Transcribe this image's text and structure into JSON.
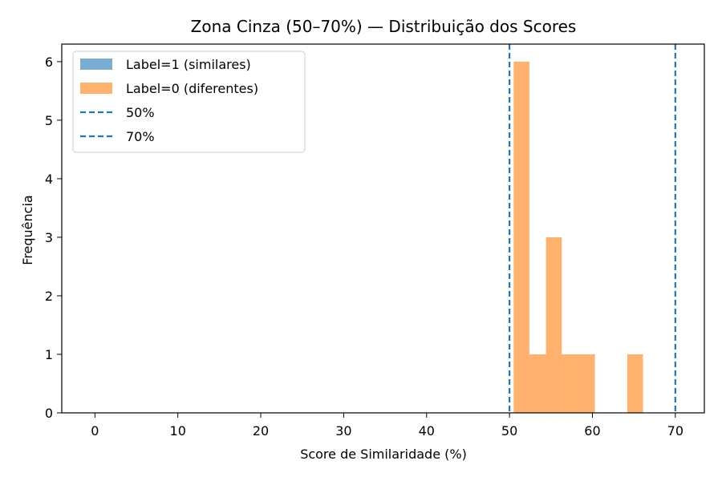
{
  "chart_data": {
    "type": "bar",
    "title": "Zona Cinza (50–70%) — Distribuição dos Scores",
    "xlabel": "Score de Similaridade (%)",
    "ylabel": "Frequência",
    "xlim": [
      -4,
      73.5
    ],
    "ylim": [
      0,
      6.3
    ],
    "xticks": [
      0,
      10,
      20,
      30,
      40,
      50,
      60,
      70
    ],
    "yticks": [
      0,
      1,
      2,
      3,
      4,
      5,
      6
    ],
    "legend_position": "upper-left",
    "series": [
      {
        "name": "Label=1 (similares)",
        "color": "#1f77b4",
        "bins": []
      },
      {
        "name": "Label=0 (diferentes)",
        "color": "#ff7f0e",
        "bins": [
          {
            "x0": 50.5,
            "x1": 52.4,
            "count": 6
          },
          {
            "x0": 52.4,
            "x1": 54.4,
            "count": 1
          },
          {
            "x0": 54.4,
            "x1": 56.3,
            "count": 3
          },
          {
            "x0": 56.3,
            "x1": 58.3,
            "count": 1
          },
          {
            "x0": 58.3,
            "x1": 60.3,
            "count": 1
          },
          {
            "x0": 64.2,
            "x1": 66.1,
            "count": 1
          }
        ]
      }
    ],
    "reference_lines": [
      {
        "name": "50%",
        "x": 50,
        "color": "#1f77b4",
        "style": "dashed"
      },
      {
        "name": "70%",
        "x": 70,
        "color": "#1f77b4",
        "style": "dashed"
      }
    ]
  }
}
